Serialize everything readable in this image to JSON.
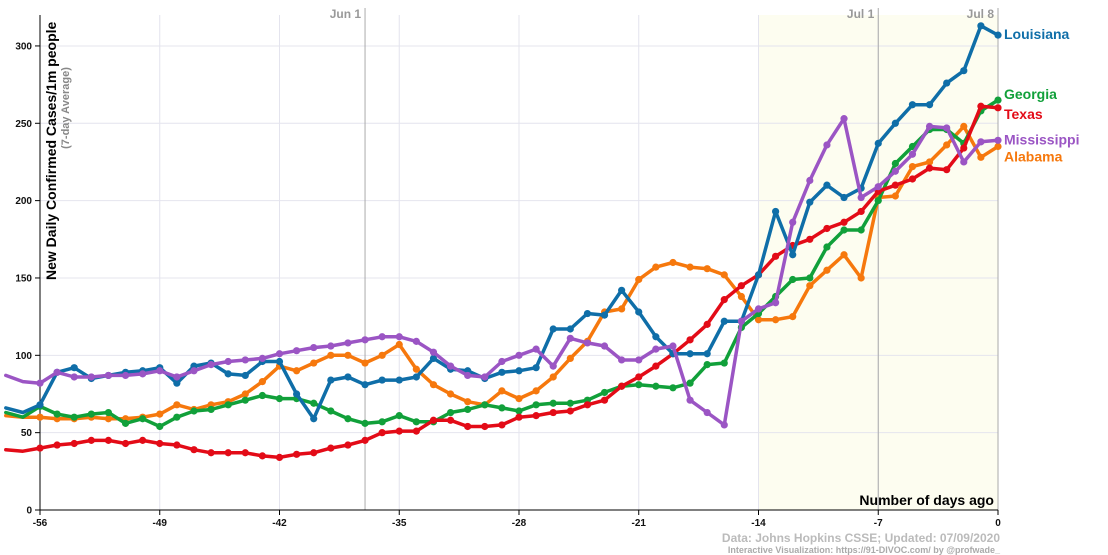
{
  "chart_data": {
    "type": "line",
    "ylabel": "New Daily Confirmed Cases/1m people",
    "ylabel_sub": "(7-day Average)",
    "xlabel": "Number of days ago",
    "xlim": [
      -56,
      0
    ],
    "ylim": [
      0,
      320
    ],
    "x_ticks": [
      -56,
      -49,
      -42,
      -35,
      -28,
      -21,
      -14,
      -7,
      0
    ],
    "y_ticks": [
      0,
      50,
      100,
      150,
      200,
      250,
      300
    ],
    "month_markers": [
      {
        "label": "Jun 1",
        "x": -37
      },
      {
        "label": "Jul 1",
        "x": -7
      },
      {
        "label": "Jul 8",
        "x": 0
      }
    ],
    "credit_line1": "Data: Johns Hopkins CSSE; Updated: 07/09/2020",
    "credit_line2": "Interactive Visualization: https://91-DIVOC.com/ by @profwade_",
    "grid": true,
    "highlight_from_x": -14,
    "series": [
      {
        "name": "Louisiana",
        "color": "#0f6ea8",
        "values": [
          66,
          63,
          68,
          89,
          92,
          85,
          87,
          89,
          90,
          92,
          82,
          93,
          95,
          88,
          87,
          96,
          96,
          75,
          59,
          84,
          86,
          81,
          84,
          84,
          86,
          98,
          91,
          90,
          85,
          89,
          90,
          92,
          117,
          117,
          127,
          126,
          142,
          128,
          112,
          101,
          101,
          101,
          122,
          122,
          152,
          193,
          165,
          199,
          210,
          202,
          208,
          237,
          250,
          262,
          262,
          276,
          284,
          313,
          307
        ]
      },
      {
        "name": "Georgia",
        "color": "#11a03a",
        "values": [
          63,
          60,
          67,
          62,
          60,
          62,
          63,
          56,
          59,
          54,
          60,
          64,
          65,
          68,
          71,
          74,
          72,
          72,
          69,
          64,
          59,
          56,
          57,
          61,
          57,
          57,
          63,
          65,
          68,
          66,
          64,
          68,
          69,
          69,
          71,
          76,
          80,
          81,
          80,
          79,
          82,
          94,
          95,
          118,
          127,
          138,
          149,
          150,
          170,
          181,
          181,
          200,
          224,
          235,
          246,
          246,
          237,
          258,
          265
        ]
      },
      {
        "name": "Texas",
        "color": "#e30b17",
        "values": [
          39,
          38,
          40,
          42,
          43,
          45,
          45,
          43,
          45,
          43,
          42,
          39,
          37,
          37,
          37,
          35,
          34,
          36,
          37,
          40,
          42,
          45,
          50,
          51,
          51,
          58,
          58,
          54,
          54,
          55,
          60,
          61,
          63,
          64,
          68,
          71,
          80,
          86,
          93,
          101,
          110,
          120,
          136,
          145,
          152,
          164,
          171,
          175,
          182,
          186,
          193,
          206,
          210,
          214,
          221,
          220,
          234,
          261,
          260
        ]
      },
      {
        "name": "Mississippi",
        "color": "#9b55c4",
        "values": [
          87,
          83,
          82,
          89,
          86,
          86,
          87,
          87,
          88,
          90,
          86,
          90,
          94,
          96,
          97,
          98,
          101,
          103,
          105,
          106,
          108,
          110,
          112,
          112,
          109,
          102,
          93,
          87,
          86,
          96,
          100,
          104,
          93,
          111,
          108,
          106,
          97,
          97,
          104,
          106,
          71,
          63,
          55,
          122,
          130,
          134,
          186,
          213,
          236,
          253,
          202,
          209,
          219,
          230,
          248,
          247,
          225,
          238,
          239
        ]
      },
      {
        "name": "Alabama",
        "color": "#f6780d",
        "values": [
          61,
          60,
          60,
          59,
          59,
          60,
          59,
          59,
          60,
          62,
          68,
          65,
          68,
          70,
          75,
          83,
          93,
          90,
          95,
          100,
          100,
          95,
          100,
          107,
          91,
          81,
          75,
          70,
          68,
          77,
          72,
          77,
          86,
          98,
          109,
          128,
          130,
          149,
          157,
          160,
          157,
          156,
          152,
          138,
          123,
          123,
          125,
          145,
          155,
          165,
          150,
          202,
          203,
          222,
          225,
          236,
          248,
          228,
          235
        ]
      }
    ]
  }
}
